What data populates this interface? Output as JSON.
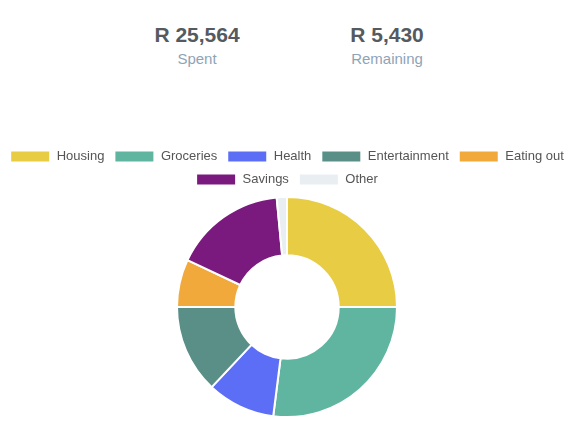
{
  "header": {
    "stats": [
      {
        "value": "R 25,564",
        "label": "Spent"
      },
      {
        "value": "R 5,430",
        "label": "Remaining"
      }
    ]
  },
  "chart_data": {
    "type": "doughnut",
    "categories": [
      "Housing",
      "Groceries",
      "Health",
      "Entertainment",
      "Eating out",
      "Savings",
      "Other"
    ],
    "values": [
      25,
      27,
      10,
      13,
      7,
      16.5,
      1.5
    ],
    "colors": [
      "#e8cc44",
      "#5fb5a0",
      "#5c6ef5",
      "#5a8f88",
      "#f2a93b",
      "#7b1a7e",
      "#e9eef2"
    ],
    "legend": "top"
  }
}
